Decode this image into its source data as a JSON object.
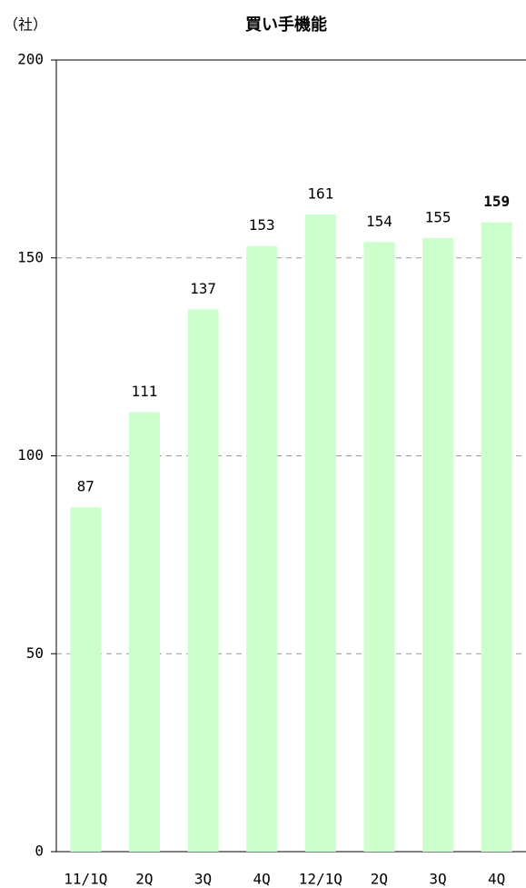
{
  "chart_data": {
    "type": "bar",
    "title": "買い手機能",
    "y_axis_label": "（社）",
    "categories": [
      "11/1Q",
      "2Q",
      "3Q",
      "4Q",
      "12/1Q",
      "2Q",
      "3Q",
      "4Q"
    ],
    "values": [
      87,
      111,
      137,
      153,
      161,
      154,
      155,
      159
    ],
    "value_label_colors": [
      "#000000",
      "#000000",
      "#000000",
      "#000000",
      "#000000",
      "#000000",
      "#000000",
      "#ff0000"
    ],
    "color": "#ccffcc",
    "ylim": [
      0,
      200
    ],
    "yticks": [
      0,
      50,
      100,
      150,
      200
    ],
    "grid": true
  }
}
